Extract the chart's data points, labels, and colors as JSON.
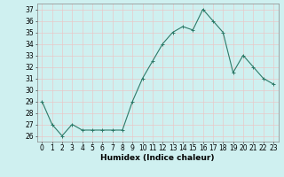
{
  "x": [
    0,
    1,
    2,
    3,
    4,
    5,
    6,
    7,
    8,
    9,
    10,
    11,
    12,
    13,
    14,
    15,
    16,
    17,
    18,
    19,
    20,
    21,
    22,
    23
  ],
  "y": [
    29,
    27,
    26,
    27,
    26.5,
    26.5,
    26.5,
    26.5,
    26.5,
    29,
    31,
    32.5,
    34,
    35,
    35.5,
    35.2,
    37,
    36,
    35,
    31.5,
    33,
    32,
    31,
    30.5
  ],
  "xlabel": "Humidex (Indice chaleur)",
  "xlim": [
    -0.5,
    23.5
  ],
  "ylim": [
    25.5,
    37.5
  ],
  "yticks": [
    26,
    27,
    28,
    29,
    30,
    31,
    32,
    33,
    34,
    35,
    36,
    37
  ],
  "xticks": [
    0,
    1,
    2,
    3,
    4,
    5,
    6,
    7,
    8,
    9,
    10,
    11,
    12,
    13,
    14,
    15,
    16,
    17,
    18,
    19,
    20,
    21,
    22,
    23
  ],
  "line_color": "#2d7a68",
  "bg_color": "#cff0f0",
  "grid_color": "#e8c8c8",
  "tick_label_fontsize": 5.5,
  "xlabel_fontsize": 6.5
}
